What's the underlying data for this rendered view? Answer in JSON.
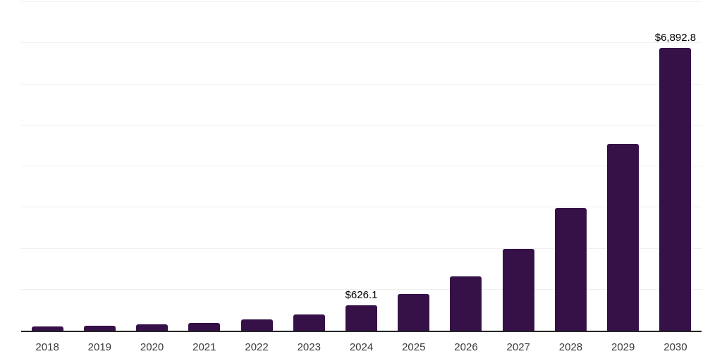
{
  "chart_data": {
    "type": "bar",
    "title": "",
    "xlabel": "",
    "ylabel": "",
    "categories": [
      "2018",
      "2019",
      "2020",
      "2021",
      "2022",
      "2023",
      "2024",
      "2025",
      "2026",
      "2027",
      "2028",
      "2029",
      "2030"
    ],
    "values": [
      100,
      128,
      155,
      196,
      280,
      400,
      626.1,
      890,
      1320,
      1985,
      2980,
      4545,
      6892.8
    ],
    "data_labels": [
      "",
      "",
      "",
      "",
      "",
      "",
      "$626.1",
      "",
      "",
      "",
      "",
      "",
      "$6,892.8"
    ],
    "ylim": [
      0,
      8000
    ],
    "grid_step": 1000,
    "grid": true,
    "legend": false,
    "y_axis_ticks_visible": false,
    "bar_color": "#361148",
    "grid_color": "#f0f0f0",
    "axis_color": "#262626",
    "value_label_color": "#000000",
    "tick_label_color": "#3a3a3a"
  }
}
